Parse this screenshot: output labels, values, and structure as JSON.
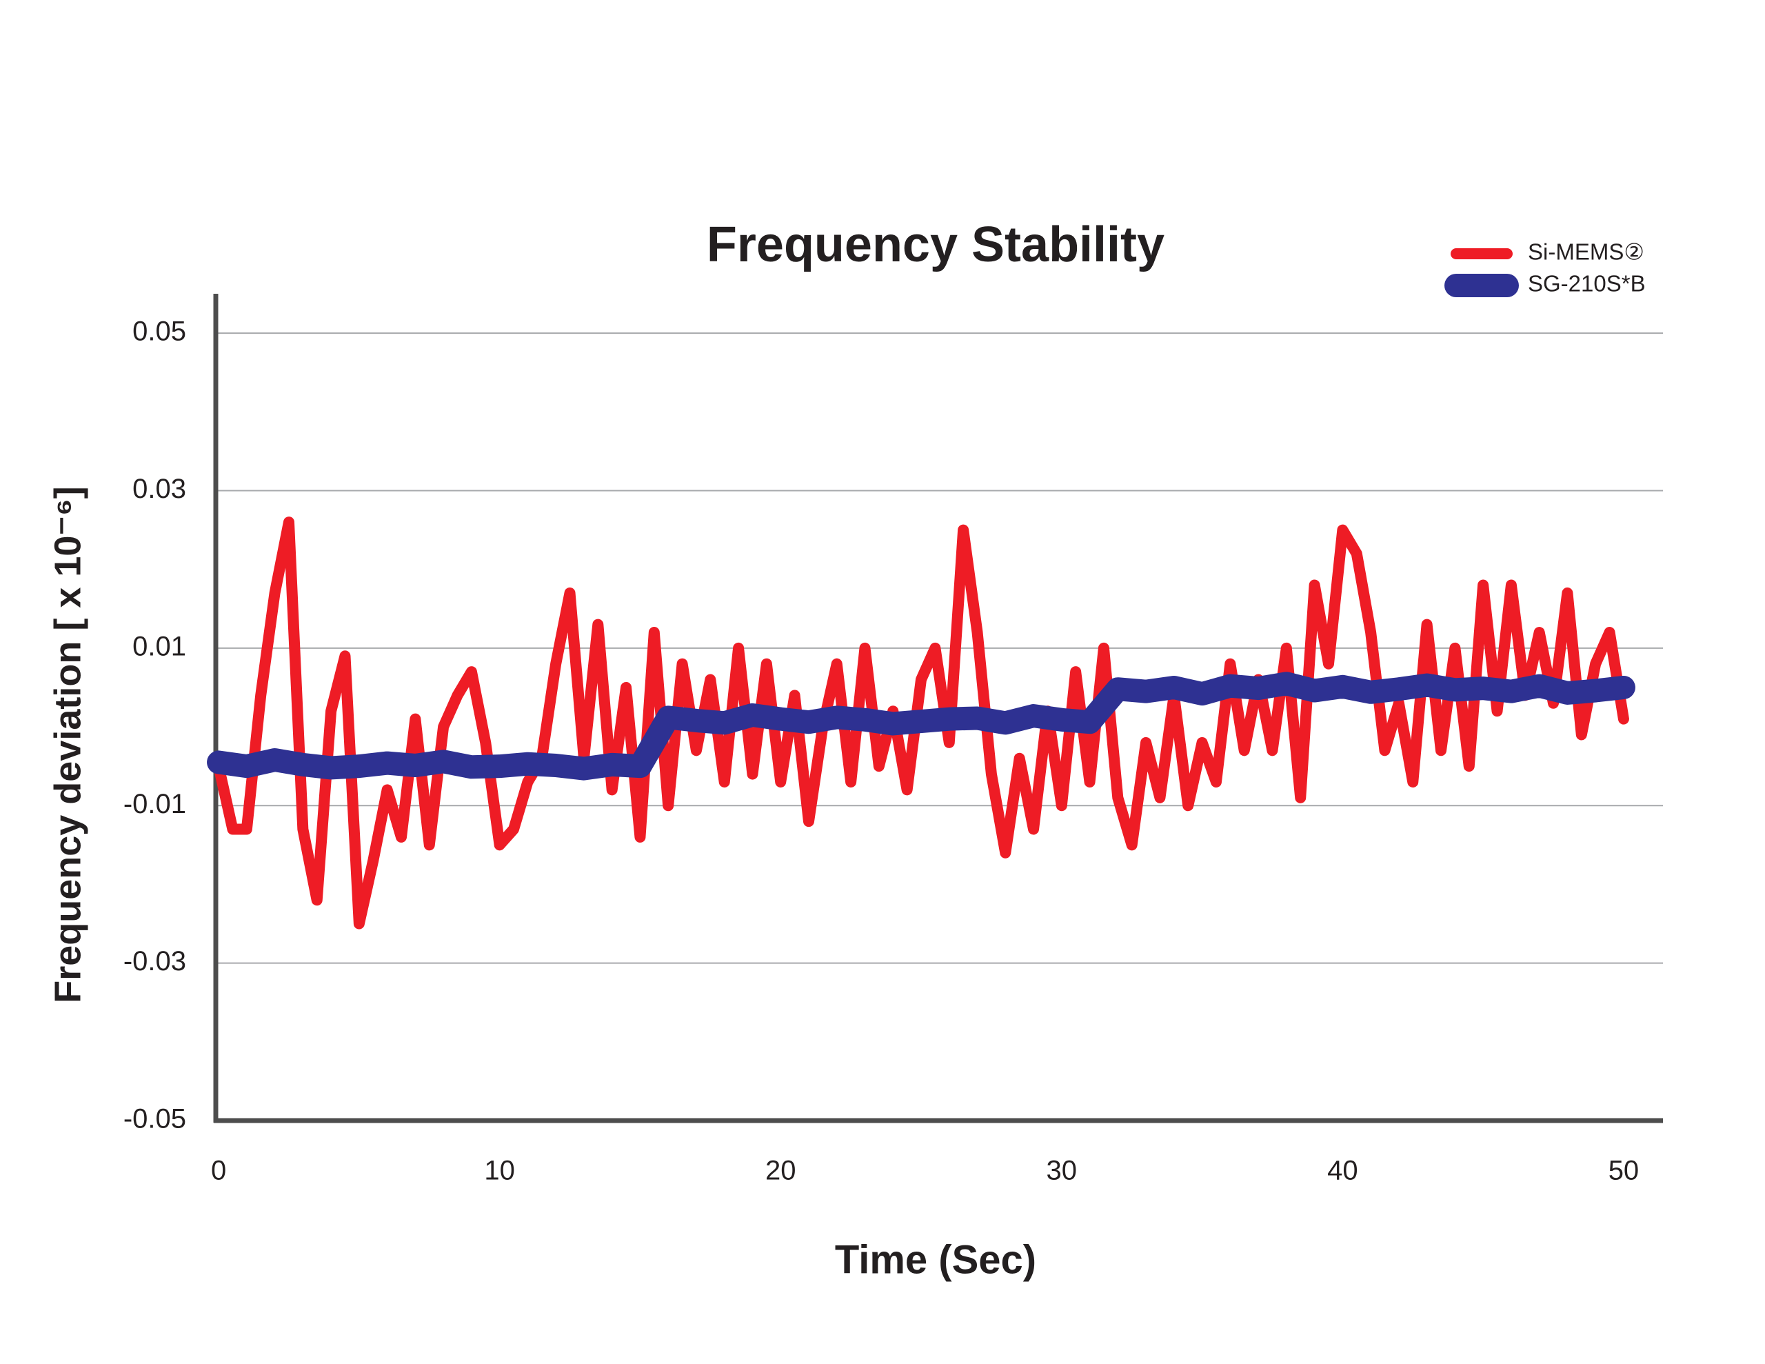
{
  "chart_data": {
    "type": "line",
    "title": "Frequency Stability",
    "xlabel": "Time (Sec)",
    "ylabel": "Frequency deviation [ x 10⁻⁶]",
    "xlim": [
      -0.1,
      51.4
    ],
    "xticks": [
      0,
      10,
      20,
      30,
      40,
      50
    ],
    "ylim": [
      -0.05,
      0.055
    ],
    "yticks": [
      -0.05,
      -0.03,
      -0.01,
      0.01,
      0.03,
      0.05
    ],
    "grid": true,
    "legend": "upper right",
    "series": [
      {
        "name": "Si-MEMS②",
        "color": "#ee1c25",
        "x": [
          0,
          0.5,
          1,
          1.5,
          2,
          2.5,
          3,
          3.5,
          4,
          4.5,
          5,
          5.5,
          6,
          6.5,
          7,
          7.5,
          8,
          8.5,
          9,
          9.5,
          10,
          10.5,
          11,
          11.5,
          12,
          12.5,
          13,
          13.5,
          14,
          14.5,
          15,
          15.5,
          16,
          16.5,
          17,
          17.5,
          18,
          18.5,
          19,
          19.5,
          20,
          20.5,
          21,
          21.5,
          22,
          22.5,
          23,
          23.5,
          24,
          24.5,
          25,
          25.5,
          26,
          26.5,
          27,
          27.5,
          28,
          28.5,
          29,
          29.5,
          30,
          30.5,
          31,
          31.5,
          32,
          32.5,
          33,
          33.5,
          34,
          34.5,
          35,
          35.5,
          36,
          36.5,
          37,
          37.5,
          38,
          38.5,
          39,
          39.5,
          40,
          40.5,
          41,
          41.5,
          42,
          42.5,
          43,
          43.5,
          44,
          44.5,
          45,
          45.5,
          46,
          46.5,
          47,
          47.5,
          48,
          48.5,
          49,
          49.5,
          50
        ],
        "values": [
          -0.005,
          -0.013,
          -0.013,
          0.004,
          0.017,
          0.026,
          -0.013,
          -0.022,
          0.002,
          0.009,
          -0.025,
          -0.017,
          -0.008,
          -0.014,
          0.001,
          -0.015,
          0.0,
          0.004,
          0.007,
          -0.002,
          -0.015,
          -0.013,
          -0.007,
          -0.004,
          0.008,
          0.017,
          -0.004,
          0.013,
          -0.008,
          0.005,
          -0.014,
          0.012,
          -0.01,
          0.008,
          -0.003,
          0.006,
          -0.007,
          0.01,
          -0.006,
          0.008,
          -0.007,
          0.004,
          -0.012,
          0.0,
          0.008,
          -0.007,
          0.01,
          -0.005,
          0.002,
          -0.008,
          0.006,
          0.01,
          -0.002,
          0.025,
          0.012,
          -0.006,
          -0.016,
          -0.004,
          -0.013,
          0.002,
          -0.01,
          0.007,
          -0.007,
          0.01,
          -0.009,
          -0.015,
          -0.002,
          -0.009,
          0.004,
          -0.01,
          -0.002,
          -0.007,
          0.008,
          -0.003,
          0.006,
          -0.003,
          0.01,
          -0.009,
          0.018,
          0.008,
          0.025,
          0.022,
          0.012,
          -0.003,
          0.003,
          -0.007,
          0.013,
          -0.003,
          0.01,
          -0.005,
          0.018,
          0.002,
          0.018,
          0.004,
          0.012,
          0.003,
          0.017,
          -0.001,
          0.008,
          0.012,
          0.001
        ]
      },
      {
        "name": "SG-210S*B",
        "color": "#2e3192",
        "x": [
          0,
          1,
          2,
          3,
          4,
          5,
          6,
          7,
          8,
          9,
          10,
          11,
          12,
          13,
          14,
          15,
          16,
          17,
          18,
          19,
          20,
          21,
          22,
          23,
          24,
          25,
          26,
          27,
          28,
          29,
          30,
          31,
          32,
          33,
          34,
          35,
          36,
          37,
          38,
          39,
          40,
          41,
          42,
          43,
          44,
          45,
          46,
          47,
          48,
          49,
          50
        ],
        "values": [
          -0.0045,
          -0.005,
          -0.0042,
          -0.0048,
          -0.0052,
          -0.005,
          -0.0046,
          -0.0049,
          -0.0044,
          -0.0051,
          -0.005,
          -0.0047,
          -0.0049,
          -0.0053,
          -0.0048,
          -0.005,
          0.0012,
          0.0008,
          0.0005,
          0.0015,
          0.001,
          0.0006,
          0.0012,
          0.0009,
          0.0004,
          0.0007,
          0.001,
          0.0011,
          0.0005,
          0.0014,
          0.0009,
          0.0006,
          0.0048,
          0.0045,
          0.005,
          0.0042,
          0.0052,
          0.0049,
          0.0055,
          0.0046,
          0.0051,
          0.0044,
          0.0048,
          0.0053,
          0.0047,
          0.0049,
          0.0045,
          0.0052,
          0.0043,
          0.0046,
          0.005
        ]
      }
    ]
  }
}
